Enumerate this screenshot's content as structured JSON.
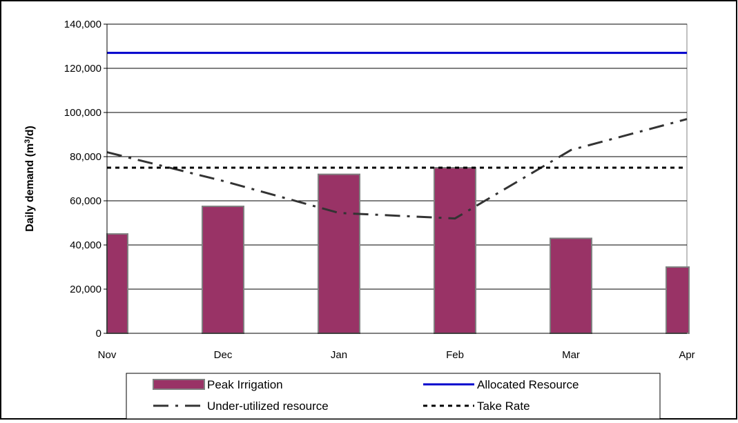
{
  "chart_data": {
    "type": "bar",
    "categories": [
      "Nov",
      "Dec",
      "Jan",
      "Feb",
      "Mar",
      "Apr"
    ],
    "ylabel_main": "Daily demand (m",
    "ylabel_sup": "3",
    "ylabel_tail": "/d)",
    "ylim": [
      0,
      140000
    ],
    "yticks": [
      "0",
      "20,000",
      "40,000",
      "60,000",
      "80,000",
      "100,000",
      "120,000",
      "140,000"
    ],
    "ytick_values": [
      0,
      20000,
      40000,
      60000,
      80000,
      100000,
      120000,
      140000
    ],
    "grid": true,
    "legend_position": "bottom",
    "series": [
      {
        "name": "Peak Irrigation",
        "kind": "bar",
        "color": "#993366",
        "values": [
          45000,
          57500,
          72000,
          75000,
          43000,
          30000
        ]
      },
      {
        "name": "Allocated Resource",
        "kind": "line",
        "style": "solid",
        "color": "#0000cc",
        "values": [
          127000,
          127000,
          127000,
          127000,
          127000,
          127000
        ]
      },
      {
        "name": "Under-utilized resource",
        "kind": "line",
        "style": "dashdot",
        "color": "#333333",
        "values": [
          82000,
          69000,
          54500,
          52000,
          83000,
          97000
        ]
      },
      {
        "name": "Take Rate",
        "kind": "line",
        "style": "dotted",
        "color": "#000000",
        "values": [
          75000,
          75000,
          75000,
          75000,
          75000,
          75000
        ]
      }
    ]
  }
}
